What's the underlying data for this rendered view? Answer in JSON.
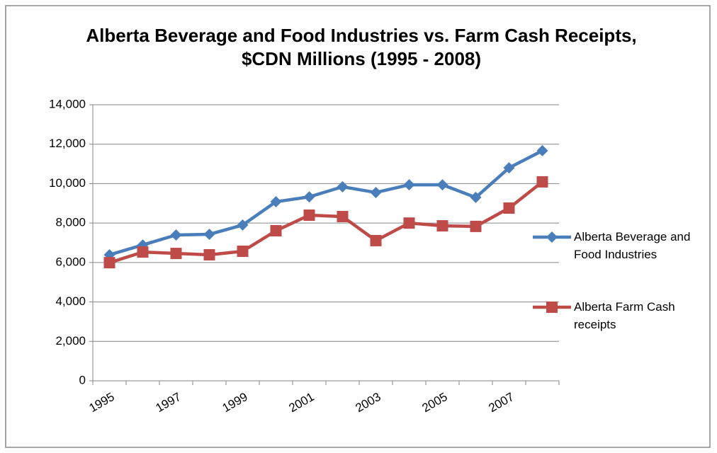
{
  "chart_data": {
    "type": "line",
    "title": "Alberta Beverage and Food Industries vs. Farm Cash Receipts, $CDN Millions (1995 - 2008)",
    "categories": [
      "1995",
      null,
      "1997",
      null,
      "1999",
      null,
      "2001",
      null,
      "2003",
      null,
      "2005",
      null,
      "2007",
      null
    ],
    "series": [
      {
        "name": "Alberta Beverage and Food Industries",
        "color": "#4a7ebb",
        "marker": "diamond",
        "values": [
          6390,
          6890,
          7395,
          7430,
          7900,
          9080,
          9330,
          9840,
          9550,
          9940,
          9940,
          9300,
          10800,
          11670
        ]
      },
      {
        "name": "Alberta Farm Cash receipts",
        "color": "#be4b48",
        "marker": "square",
        "values": [
          5990,
          6530,
          6460,
          6390,
          6570,
          7610,
          8400,
          8330,
          7110,
          8000,
          7860,
          7830,
          8760,
          10090
        ]
      }
    ],
    "ylim": [
      0,
      14000
    ],
    "yticks": [
      0,
      {
        "value": 2000,
        "label": "2,000"
      },
      {
        "value": 4000,
        "label": "4,000"
      },
      {
        "value": 6000,
        "label": "6,000"
      },
      {
        "value": 8000,
        "label": "8,000"
      },
      {
        "value": 10000,
        "label": "10,000"
      },
      {
        "value": 12000,
        "label": "12,000"
      },
      {
        "value": 14000,
        "label": "14,000"
      }
    ],
    "grid": true,
    "legend": "right"
  }
}
